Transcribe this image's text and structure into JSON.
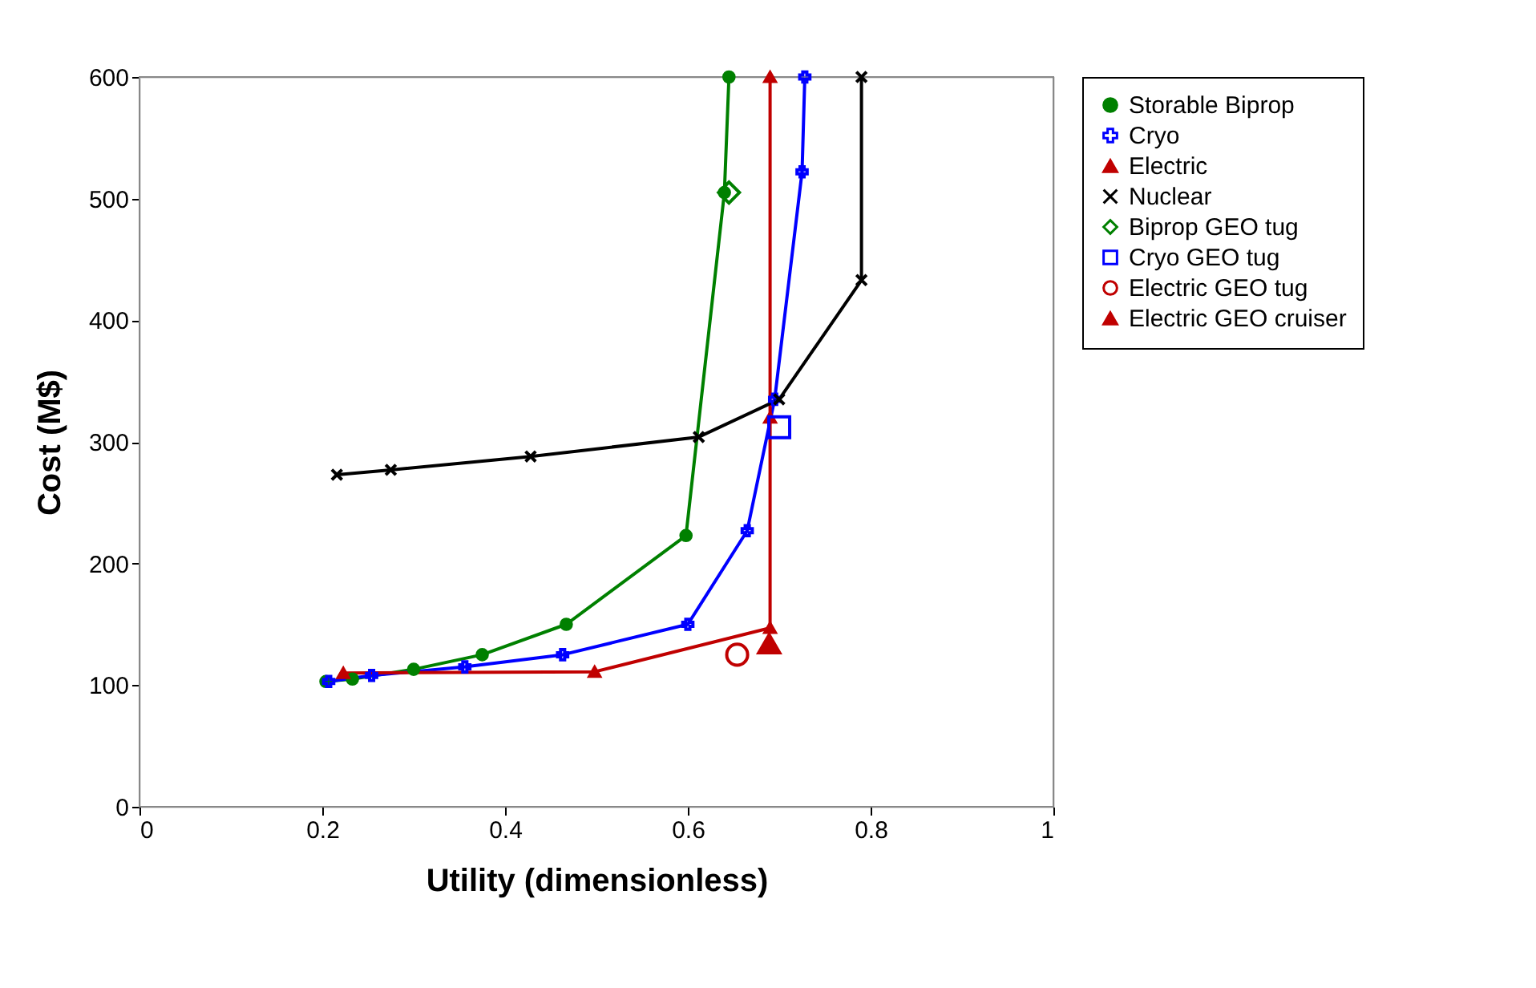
{
  "chart_data": {
    "type": "line",
    "xlabel": "Utility (dimensionless)",
    "ylabel": "Cost (M$)",
    "xlim": [
      0,
      1
    ],
    "ylim": [
      0,
      600
    ],
    "xticks": [
      0,
      0.2,
      0.4,
      0.6,
      0.8,
      1
    ],
    "yticks": [
      0,
      100,
      200,
      300,
      400,
      500,
      600
    ],
    "grid": false,
    "legend": "right",
    "line_style": "solid",
    "series": [
      {
        "name": "Storable Biprop",
        "color": "#008000",
        "marker": "circle",
        "x": [
          0.204,
          0.233,
          0.3,
          0.375,
          0.467,
          0.598,
          0.64,
          0.645
        ],
        "values": [
          103,
          105,
          113,
          125,
          150,
          223,
          505,
          600
        ]
      },
      {
        "name": "Cryo",
        "color": "#0000ff",
        "marker": "cross",
        "x": [
          0.207,
          0.254,
          0.356,
          0.463,
          0.6,
          0.665,
          0.695,
          0.725,
          0.728
        ],
        "values": [
          103,
          108,
          115,
          125,
          150,
          227,
          335,
          522,
          600
        ]
      },
      {
        "name": "Electric",
        "color": "#c00000",
        "marker": "triangle",
        "x": [
          0.223,
          0.498,
          0.69,
          0.69,
          0.69
        ],
        "values": [
          110,
          111,
          147,
          320,
          600
        ]
      },
      {
        "name": "Nuclear",
        "color": "#000000",
        "marker": "x",
        "x": [
          0.216,
          0.275,
          0.428,
          0.612,
          0.7,
          0.79,
          0.79
        ],
        "values": [
          273,
          277,
          288,
          304,
          335,
          433,
          600
        ]
      },
      {
        "name": "Biprop GEO tug",
        "type": "scatter",
        "color": "#008000",
        "marker": "diamond",
        "x": [
          0.645
        ],
        "values": [
          505
        ]
      },
      {
        "name": "Cryo GEO tug",
        "type": "scatter",
        "color": "#0000ff",
        "marker": "square",
        "x": [
          0.7
        ],
        "values": [
          312
        ]
      },
      {
        "name": "Electric GEO tug",
        "type": "scatter",
        "color": "#c00000",
        "marker": "circle",
        "x": [
          0.654
        ],
        "values": [
          125
        ]
      },
      {
        "name": "Electric GEO cruiser",
        "type": "scatter",
        "color": "#c00000",
        "marker": "triangle",
        "x": [
          0.689
        ],
        "values": [
          134
        ]
      }
    ]
  }
}
